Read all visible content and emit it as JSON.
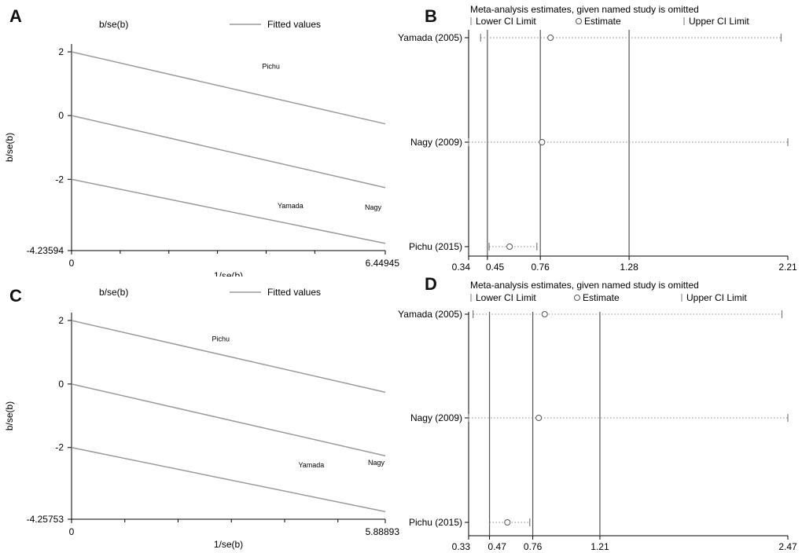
{
  "chart_data": [
    {
      "panel": "A",
      "type": "line",
      "legend": {
        "col_label": "b/se(b)",
        "series_label": "Fitted values"
      },
      "xlabel": "1/se(b)",
      "ylabel": "b/se(b)",
      "xlim": [
        0,
        6.44945
      ],
      "ylim": [
        -4.23594,
        2.4
      ],
      "x_ticks": [
        0,
        6.44945
      ],
      "x_tick_labels": [
        "0",
        "6.44945"
      ],
      "x_minor_ticks": [
        1,
        2,
        3,
        4,
        5
      ],
      "y_ticks": [
        2,
        0,
        -2,
        -4.23594
      ],
      "y_tick_labels": [
        "2",
        "0",
        "-2",
        "-4.23594"
      ],
      "lines": [
        {
          "x": [
            0,
            6.44945
          ],
          "y": [
            2,
            -0.26
          ]
        },
        {
          "x": [
            0,
            6.44945
          ],
          "y": [
            0,
            -2.26
          ]
        },
        {
          "x": [
            0,
            6.44945
          ],
          "y": [
            -2,
            -4.01
          ]
        }
      ],
      "points": [
        {
          "label": "Pichu",
          "x": 4.1,
          "y": 1.47
        },
        {
          "label": "Yamada",
          "x": 4.5,
          "y": -2.9
        },
        {
          "label": "Nagy",
          "x": 6.2,
          "y": -2.95
        }
      ]
    },
    {
      "panel": "B",
      "type": "scatter",
      "title": "Meta-analysis estimates, given named study is omitted",
      "legend": {
        "lower": "Lower CI Limit",
        "estimate": "Estimate",
        "upper": "Upper CI Limit"
      },
      "xlim": [
        0.34,
        2.21
      ],
      "x_ticks": [
        0.34,
        0.45,
        0.76,
        1.28,
        2.21
      ],
      "x_tick_labels": [
        "0.34",
        "0.45",
        "0.76",
        "1.28",
        "2.21"
      ],
      "vlines": [
        0.45,
        0.76,
        1.28
      ],
      "studies": [
        {
          "name": "Yamada (2005)",
          "lower": 0.41,
          "estimate": 0.82,
          "upper": 2.17
        },
        {
          "name": "Nagy (2009)",
          "lower": 0.34,
          "estimate": 0.77,
          "upper": 2.21
        },
        {
          "name": "Pichu (2015)",
          "lower": 0.46,
          "estimate": 0.58,
          "upper": 0.74
        }
      ]
    },
    {
      "panel": "C",
      "type": "line",
      "legend": {
        "col_label": "b/se(b)",
        "series_label": "Fitted values"
      },
      "xlabel": "1/se(b)",
      "ylabel": "b/se(b)",
      "xlim": [
        0,
        5.88893
      ],
      "ylim": [
        -4.25753,
        2.4
      ],
      "x_ticks": [
        0,
        5.88893
      ],
      "x_tick_labels": [
        "0",
        "5.88893"
      ],
      "x_minor_ticks": [
        1,
        2,
        3,
        4,
        5
      ],
      "y_ticks": [
        2,
        0,
        -2,
        -4.25753
      ],
      "y_tick_labels": [
        "2",
        "0",
        "-2",
        "-4.25753"
      ],
      "lines": [
        {
          "x": [
            0,
            5.88893
          ],
          "y": [
            2,
            -0.26
          ]
        },
        {
          "x": [
            0,
            5.88893
          ],
          "y": [
            0,
            -2.26
          ]
        },
        {
          "x": [
            0,
            5.88893
          ],
          "y": [
            -2,
            -4.02
          ]
        }
      ],
      "points": [
        {
          "label": "Pichu",
          "x": 2.8,
          "y": 1.35
        },
        {
          "label": "Yamada",
          "x": 4.5,
          "y": -2.62
        },
        {
          "label": "Nagy",
          "x": 5.72,
          "y": -2.55
        }
      ]
    },
    {
      "panel": "D",
      "type": "scatter",
      "title": "Meta-analysis estimates, given named study is omitted",
      "legend": {
        "lower": "Lower CI Limit",
        "estimate": "Estimate",
        "upper": "Upper CI Limit"
      },
      "xlim": [
        0.33,
        2.47
      ],
      "x_ticks": [
        0.33,
        0.47,
        0.76,
        1.21,
        2.47
      ],
      "x_tick_labels": [
        "0.33",
        "0.47",
        "0.76",
        "1.21",
        "2.47"
      ],
      "vlines": [
        0.47,
        0.76,
        1.21
      ],
      "studies": [
        {
          "name": "Yamada (2005)",
          "lower": 0.36,
          "estimate": 0.84,
          "upper": 2.43
        },
        {
          "name": "Nagy (2009)",
          "lower": 0.33,
          "estimate": 0.8,
          "upper": 2.47
        },
        {
          "name": "Pichu (2015)",
          "lower": 0.47,
          "estimate": 0.59,
          "upper": 0.74
        }
      ]
    }
  ]
}
